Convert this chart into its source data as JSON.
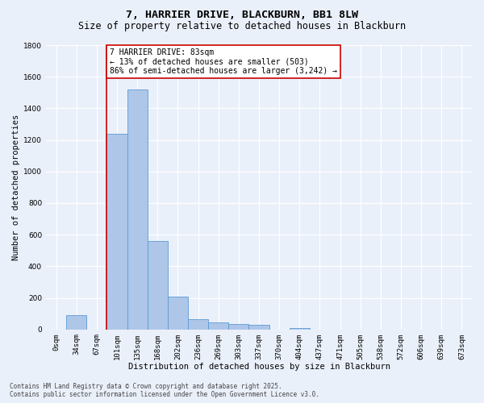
{
  "title": "7, HARRIER DRIVE, BLACKBURN, BB1 8LW",
  "subtitle": "Size of property relative to detached houses in Blackburn",
  "xlabel": "Distribution of detached houses by size in Blackburn",
  "ylabel": "Number of detached properties",
  "footer_line1": "Contains HM Land Registry data © Crown copyright and database right 2025.",
  "footer_line2": "Contains public sector information licensed under the Open Government Licence v3.0.",
  "categories": [
    "0sqm",
    "34sqm",
    "67sqm",
    "101sqm",
    "135sqm",
    "168sqm",
    "202sqm",
    "236sqm",
    "269sqm",
    "303sqm",
    "337sqm",
    "370sqm",
    "404sqm",
    "437sqm",
    "471sqm",
    "505sqm",
    "538sqm",
    "572sqm",
    "606sqm",
    "639sqm",
    "673sqm"
  ],
  "values": [
    0,
    90,
    0,
    1240,
    1520,
    560,
    210,
    65,
    45,
    33,
    27,
    0,
    10,
    0,
    0,
    0,
    0,
    0,
    0,
    0,
    0
  ],
  "bar_color": "#aec6e8",
  "bar_edge_color": "#5b9bd5",
  "ylim": [
    0,
    1800
  ],
  "yticks": [
    0,
    200,
    400,
    600,
    800,
    1000,
    1200,
    1400,
    1600,
    1800
  ],
  "redline_x": 2.5,
  "annotation_text": "7 HARRIER DRIVE: 83sqm\n← 13% of detached houses are smaller (503)\n86% of semi-detached houses are larger (3,242) →",
  "annotation_box_color": "#ffffff",
  "annotation_box_edge_color": "#cc0000",
  "redline_color": "#cc0000",
  "bg_color": "#eaf0fa",
  "grid_color": "#ffffff",
  "title_fontsize": 9.5,
  "subtitle_fontsize": 8.5,
  "axis_label_fontsize": 7.5,
  "tick_fontsize": 6.5,
  "annotation_fontsize": 7,
  "footer_fontsize": 5.5
}
